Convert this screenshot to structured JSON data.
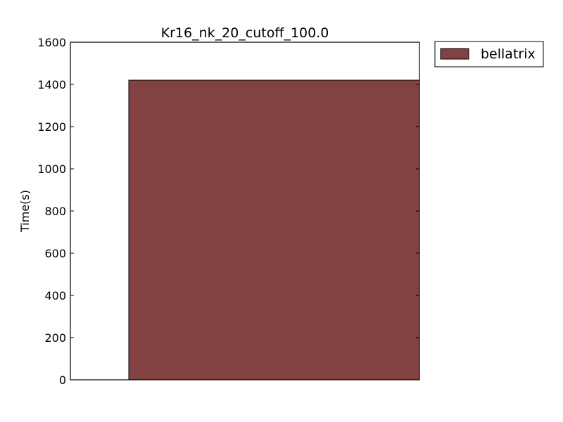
{
  "chart_data": {
    "type": "bar",
    "title": "Kr16_nk_20_cutoff_100.0",
    "xlabel": "",
    "ylabel": "Time(s)",
    "ylim": [
      0,
      1600
    ],
    "yticks": [
      0,
      200,
      400,
      600,
      800,
      1000,
      1200,
      1400,
      1600
    ],
    "series": [
      {
        "name": "bellatrix",
        "values": [
          1420
        ],
        "color": "#824242"
      }
    ],
    "grid": false,
    "legend": "outside-top-right"
  }
}
